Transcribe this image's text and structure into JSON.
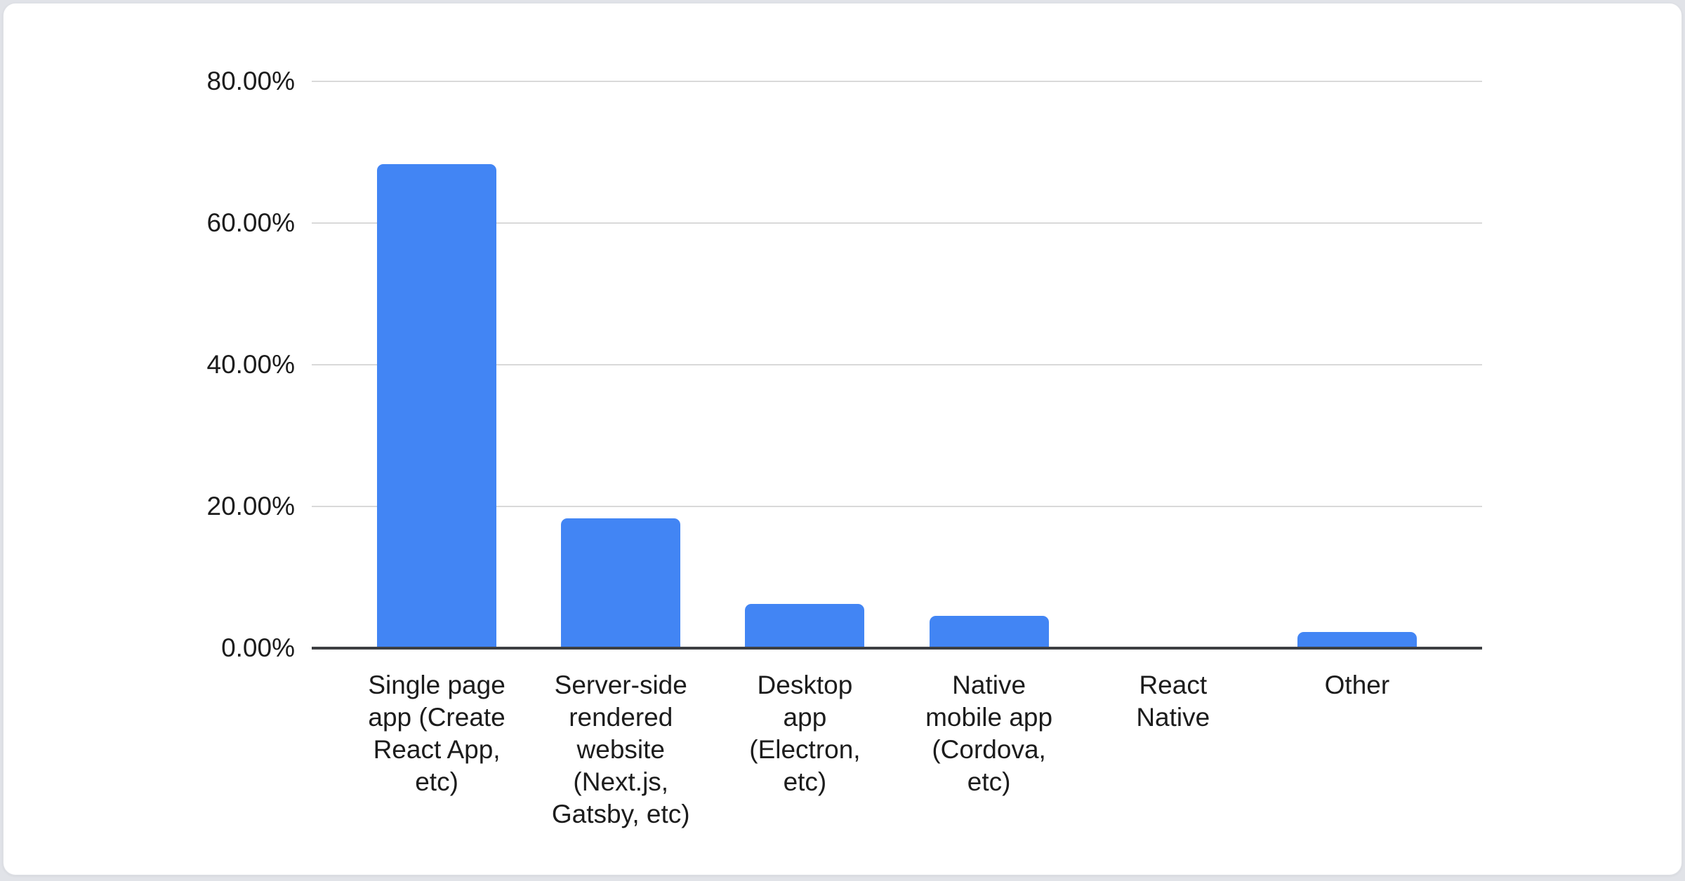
{
  "chart_data": {
    "type": "bar",
    "title": "",
    "categories": [
      "Single page app (Create React App, etc)",
      "Server-side rendered website (Next.js, Gatsby, etc)",
      "Desktop app (Electron, etc)",
      "Native mobile app (Cordova, etc)",
      "React Native",
      "Other"
    ],
    "values": [
      68.3,
      18.3,
      6.2,
      4.6,
      0,
      2.3
    ],
    "value_unit": "%",
    "ylim": [
      0,
      80
    ],
    "y_ticks": [
      {
        "value": 80,
        "label": "80.00%"
      },
      {
        "value": 60,
        "label": "60.00%"
      },
      {
        "value": 40,
        "label": "40.00%"
      },
      {
        "value": 20,
        "label": "20.00%"
      },
      {
        "value": 0,
        "label": "0.00%"
      }
    ],
    "xlabel": "",
    "ylabel": "",
    "grid": "horizontal",
    "legend": "none",
    "colors": {
      "bar": "#4285f4",
      "gridline": "#d9d9d9",
      "axis_line": "#3d3f42",
      "label_text": "#1c1c1c",
      "card_bg": "#ffffff",
      "card_border": "#dfe1e6",
      "page_bg": "#e1e3e8"
    }
  }
}
